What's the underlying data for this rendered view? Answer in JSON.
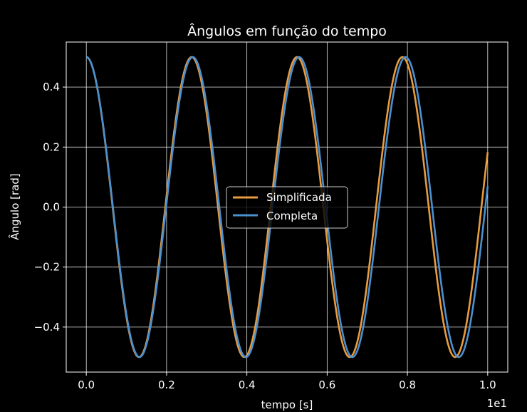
{
  "chart_data": {
    "type": "line",
    "title": "Ângulos em função do tempo",
    "xlabel": "tempo [s]",
    "ylabel": "Ângulo [rad]",
    "x_offset_label": "1e1",
    "xlim": [
      -0.05,
      1.05
    ],
    "ylim": [
      -0.55,
      0.55
    ],
    "x_ticks": [
      "0.0",
      "0.2",
      "0.4",
      "0.6",
      "0.8",
      "1.0"
    ],
    "y_ticks": [
      "−0.4",
      "−0.2",
      "0.0",
      "0.2",
      "0.4"
    ],
    "grid": true,
    "legend_position": "center",
    "background": "#000000",
    "series": [
      {
        "name": "Simplificada",
        "color": "#e89c3f",
        "amplitude": 0.5,
        "period": 0.2625,
        "phase_shift": 0.0
      },
      {
        "name": "Completa",
        "color": "#4a90d0",
        "amplitude": 0.5,
        "period": 0.2651,
        "phase_shift": 0.0
      }
    ]
  }
}
